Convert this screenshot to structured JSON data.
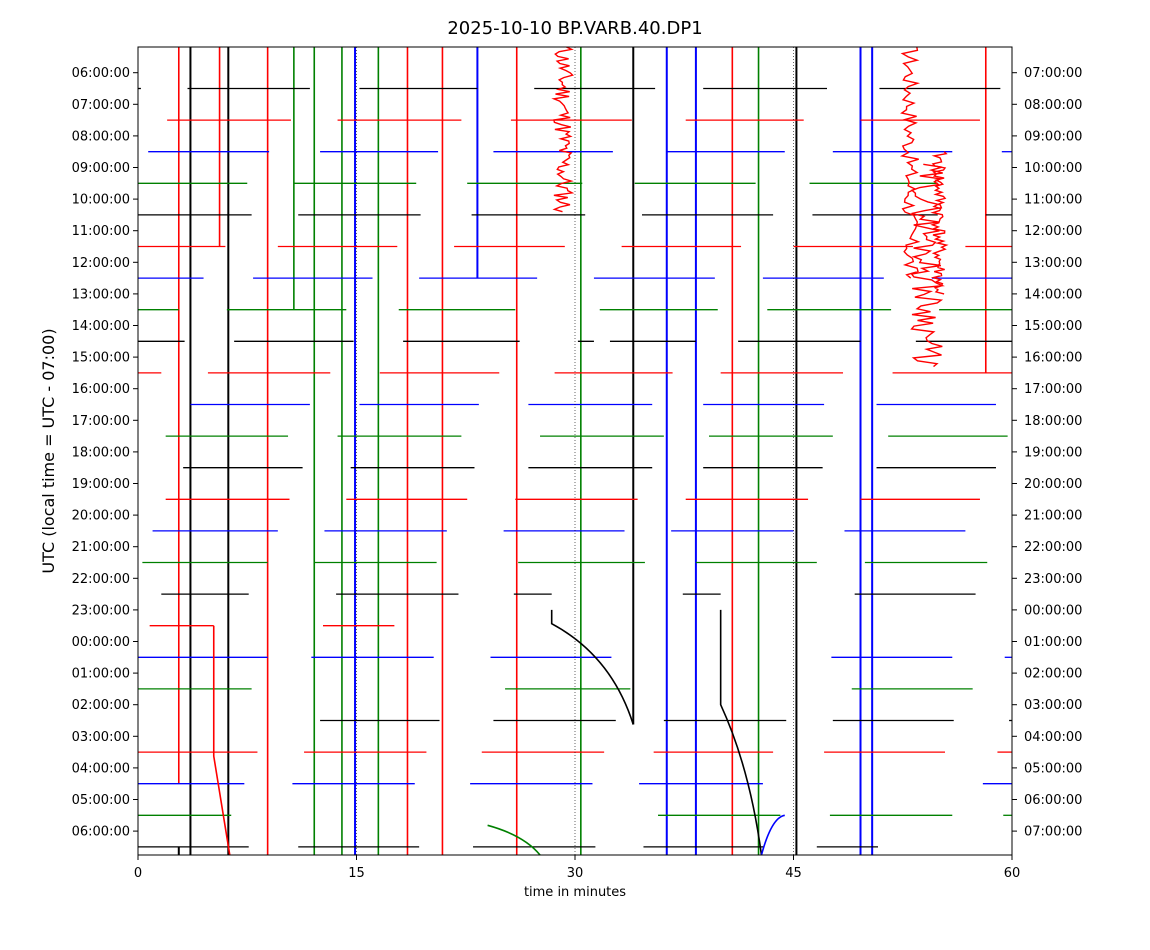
{
  "chart_data": {
    "type": "line",
    "title": "2025-10-10 BP.VARB.40.DP1",
    "xlabel": "time in minutes",
    "ylabel": "UTC (local time = UTC - 07:00)",
    "xlim": [
      0,
      60
    ],
    "x_ticks": [
      "0",
      "15",
      "30",
      "45",
      "60"
    ],
    "left_ticks": [
      "06:00:00",
      "07:00:00",
      "08:00:00",
      "09:00:00",
      "10:00:00",
      "11:00:00",
      "12:00:00",
      "13:00:00",
      "14:00:00",
      "15:00:00",
      "16:00:00",
      "17:00:00",
      "18:00:00",
      "19:00:00",
      "20:00:00",
      "21:00:00",
      "22:00:00",
      "23:00:00",
      "00:00:00",
      "01:00:00",
      "02:00:00",
      "03:00:00",
      "04:00:00",
      "05:00:00",
      "06:00:00"
    ],
    "right_ticks": [
      "07:00:00",
      "08:00:00",
      "09:00:00",
      "10:00:00",
      "11:00:00",
      "12:00:00",
      "13:00:00",
      "14:00:00",
      "15:00:00",
      "16:00:00",
      "17:00:00",
      "18:00:00",
      "19:00:00",
      "20:00:00",
      "21:00:00",
      "22:00:00",
      "23:00:00",
      "00:00:00",
      "01:00:00",
      "02:00:00",
      "03:00:00",
      "04:00:00",
      "05:00:00",
      "06:00:00",
      "07:00:00"
    ],
    "row_colors": [
      "#000000",
      "#ff0000",
      "#0000ff",
      "#008000"
    ],
    "trace_rows": [
      {
        "utc": "06:00",
        "color": "black",
        "segments": [
          [
            0,
            0.2
          ],
          [
            3.4,
            11.8
          ],
          [
            15.2,
            23.3
          ],
          [
            27.2,
            35.5
          ],
          [
            38.8,
            47.3
          ],
          [
            50.9,
            59.2
          ]
        ]
      },
      {
        "utc": "07:00",
        "color": "red",
        "segments": [
          [
            2.0,
            10.5
          ],
          [
            13.7,
            22.2
          ],
          [
            25.6,
            33.9
          ],
          [
            37.6,
            45.7
          ],
          [
            49.6,
            57.8
          ]
        ]
      },
      {
        "utc": "08:00",
        "color": "blue",
        "segments": [
          [
            0.7,
            9.0
          ],
          [
            12.5,
            20.6
          ],
          [
            24.4,
            32.6
          ],
          [
            36.3,
            44.4
          ],
          [
            47.7,
            55.9
          ],
          [
            59.3,
            60
          ]
        ]
      },
      {
        "utc": "09:00",
        "color": "green",
        "segments": [
          [
            0,
            7.5
          ],
          [
            10.7,
            19.1
          ],
          [
            22.6,
            30.5
          ],
          [
            34.1,
            42.4
          ],
          [
            46.1,
            54.9
          ]
        ]
      },
      {
        "utc": "10:00",
        "color": "black",
        "segments": [
          [
            0,
            7.8
          ],
          [
            11.0,
            19.4
          ],
          [
            22.9,
            30.7
          ],
          [
            34.6,
            43.6
          ],
          [
            46.3,
            54.9
          ],
          [
            58.2,
            60
          ]
        ]
      },
      {
        "utc": "11:00",
        "color": "red",
        "segments": [
          [
            0,
            6.0
          ],
          [
            9.6,
            17.8
          ],
          [
            21.7,
            29.3
          ],
          [
            33.2,
            41.4
          ],
          [
            45.0,
            53.2
          ],
          [
            56.8,
            60
          ]
        ]
      },
      {
        "utc": "12:00",
        "color": "blue",
        "segments": [
          [
            0,
            4.5
          ],
          [
            7.9,
            16.1
          ],
          [
            19.3,
            27.4
          ],
          [
            31.3,
            39.6
          ],
          [
            42.9,
            51.2
          ],
          [
            54.5,
            60
          ]
        ]
      },
      {
        "utc": "13:00",
        "color": "green",
        "segments": [
          [
            0,
            2.8
          ],
          [
            6.1,
            14.3
          ],
          [
            17.9,
            25.9
          ],
          [
            31.7,
            39.8
          ],
          [
            43.2,
            51.7
          ],
          [
            55.0,
            60
          ]
        ]
      },
      {
        "utc": "14:00",
        "color": "black",
        "segments": [
          [
            0,
            3.2
          ],
          [
            6.6,
            14.8
          ],
          [
            18.2,
            26.2
          ],
          [
            30.2,
            31.3
          ],
          [
            32.4,
            38.3
          ],
          [
            41.2,
            49.6
          ],
          [
            53.4,
            60
          ]
        ]
      },
      {
        "utc": "15:00",
        "color": "red",
        "segments": [
          [
            0,
            1.6
          ],
          [
            4.8,
            13.2
          ],
          [
            16.6,
            24.8
          ],
          [
            28.6,
            36.7
          ],
          [
            40.0,
            48.4
          ],
          [
            51.8,
            60
          ]
        ]
      },
      {
        "utc": "16:00",
        "color": "blue",
        "segments": [
          [
            3.6,
            11.8
          ],
          [
            15.2,
            23.4
          ],
          [
            26.8,
            35.3
          ],
          [
            38.8,
            47.1
          ],
          [
            50.7,
            58.9
          ]
        ]
      },
      {
        "utc": "17:00",
        "color": "green",
        "segments": [
          [
            1.9,
            10.3
          ],
          [
            13.7,
            22.2
          ],
          [
            27.6,
            36.1
          ],
          [
            39.2,
            47.7
          ],
          [
            51.5,
            59.7
          ]
        ]
      },
      {
        "utc": "18:00",
        "color": "black",
        "segments": [
          [
            3.1,
            11.3
          ],
          [
            14.6,
            23.1
          ],
          [
            26.8,
            35.3
          ],
          [
            38.8,
            47.0
          ],
          [
            50.7,
            58.9
          ]
        ]
      },
      {
        "utc": "19:00",
        "color": "red",
        "segments": [
          [
            1.9,
            10.4
          ],
          [
            14.3,
            22.6
          ],
          [
            25.9,
            34.3
          ],
          [
            37.6,
            46.0
          ],
          [
            49.6,
            57.8
          ]
        ]
      },
      {
        "utc": "20:00",
        "color": "blue",
        "segments": [
          [
            1.0,
            9.6
          ],
          [
            12.8,
            21.2
          ],
          [
            25.1,
            33.4
          ],
          [
            36.6,
            45.0
          ],
          [
            48.5,
            56.8
          ]
        ]
      },
      {
        "utc": "21:00",
        "color": "green",
        "segments": [
          [
            0.3,
            8.9
          ],
          [
            12.1,
            20.5
          ],
          [
            26.1,
            34.8
          ],
          [
            38.3,
            46.6
          ],
          [
            49.9,
            58.3
          ]
        ]
      },
      {
        "utc": "22:00",
        "color": "black",
        "segments": [
          [
            1.6,
            7.6
          ],
          [
            13.6,
            22.0
          ],
          [
            25.8,
            28.4
          ],
          [
            37.4,
            40.0
          ],
          [
            49.2,
            57.5
          ]
        ]
      },
      {
        "utc": "23:00",
        "color": "red",
        "segments": [
          [
            0.8,
            5.2
          ],
          [
            12.7,
            17.6
          ]
        ]
      },
      {
        "utc": "00:00",
        "color": "blue",
        "segments": [
          [
            0,
            8.9
          ],
          [
            11.9,
            20.3
          ],
          [
            24.2,
            32.5
          ],
          [
            47.6,
            55.9
          ],
          [
            59.5,
            60
          ]
        ]
      },
      {
        "utc": "01:00",
        "color": "green",
        "segments": [
          [
            0,
            7.8
          ],
          [
            25.2,
            33.8
          ],
          [
            49.0,
            57.3
          ]
        ]
      },
      {
        "utc": "02:00",
        "color": "black",
        "segments": [
          [
            12.5,
            20.7
          ],
          [
            24.4,
            32.8
          ],
          [
            36.1,
            44.5
          ],
          [
            47.7,
            56.0
          ],
          [
            59.8,
            60
          ]
        ]
      },
      {
        "utc": "03:00",
        "color": "red",
        "segments": [
          [
            0,
            8.2
          ],
          [
            11.4,
            19.8
          ],
          [
            23.6,
            32.0
          ],
          [
            35.4,
            43.6
          ],
          [
            47.1,
            55.4
          ],
          [
            59.0,
            60
          ]
        ]
      },
      {
        "utc": "04:00",
        "color": "blue",
        "segments": [
          [
            0,
            7.3
          ],
          [
            10.6,
            19.0
          ],
          [
            22.8,
            31.2
          ],
          [
            34.4,
            42.9
          ],
          [
            58.0,
            60
          ]
        ]
      },
      {
        "utc": "05:00",
        "color": "green",
        "segments": [
          [
            0,
            6.4
          ],
          [
            35.7,
            44.1
          ],
          [
            47.5,
            55.9
          ],
          [
            59.4,
            60
          ]
        ]
      },
      {
        "utc": "06:00",
        "color": "black",
        "segments": [
          [
            0,
            7.6
          ],
          [
            11.0,
            19.3
          ],
          [
            23.0,
            31.4
          ],
          [
            34.7,
            43.0
          ],
          [
            46.6,
            50.8
          ]
        ]
      }
    ],
    "vertical_traces": [
      {
        "x": 2.8,
        "from": "06:00",
        "to": "06:00 end",
        "color": "black"
      },
      {
        "x": 2.8,
        "from": "top",
        "to": "04:00",
        "color": "red"
      },
      {
        "x": 3.6,
        "from": "top",
        "to": "end",
        "color": "black"
      },
      {
        "x": 5.6,
        "from": "top",
        "to": "11:00",
        "color": "red"
      },
      {
        "x": 6.2,
        "from": "top",
        "to": "end",
        "color": "black"
      },
      {
        "x": 8.9,
        "from": "top",
        "to": "end",
        "color": "red"
      },
      {
        "x": 10.7,
        "from": "top",
        "to": "13:00",
        "color": "green"
      },
      {
        "x": 12.1,
        "from": "top",
        "to": "end",
        "color": "green"
      },
      {
        "x": 14.0,
        "from": "top",
        "to": "end",
        "color": "green"
      },
      {
        "x": 14.9,
        "from": "top",
        "to": "end",
        "color": "blue"
      },
      {
        "x": 16.5,
        "from": "top",
        "to": "end",
        "color": "green"
      },
      {
        "x": 18.5,
        "from": "top",
        "to": "end",
        "color": "red"
      },
      {
        "x": 20.9,
        "from": "top",
        "to": "end",
        "color": "red"
      },
      {
        "x": 23.3,
        "from": "top",
        "to": "12:00",
        "color": "blue"
      },
      {
        "x": 26.0,
        "from": "top",
        "to": "end",
        "color": "red"
      },
      {
        "x": 30.4,
        "from": "top",
        "to": "end",
        "color": "green"
      },
      {
        "x": 34.0,
        "from": "top",
        "to": "02:30",
        "color": "black"
      },
      {
        "x": 36.3,
        "from": "top",
        "to": "end",
        "color": "blue"
      },
      {
        "x": 38.3,
        "from": "top",
        "to": "end",
        "color": "blue"
      },
      {
        "x": 40.8,
        "from": "top",
        "to": "end",
        "color": "red"
      },
      {
        "x": 42.6,
        "from": "top",
        "to": "end",
        "color": "green"
      },
      {
        "x": 45.2,
        "from": "top",
        "to": "end",
        "color": "black"
      },
      {
        "x": 49.6,
        "from": "top",
        "to": "end",
        "color": "blue"
      },
      {
        "x": 50.4,
        "from": "top",
        "to": "end",
        "color": "blue"
      },
      {
        "x": 58.2,
        "from": "top",
        "to": "15:00",
        "color": "red"
      }
    ],
    "notes": "Helicorder-style seismic trace plot; red high-amplitude bursts near minutes 29 and 52-55 between 06:00 and 15:00 UTC."
  }
}
